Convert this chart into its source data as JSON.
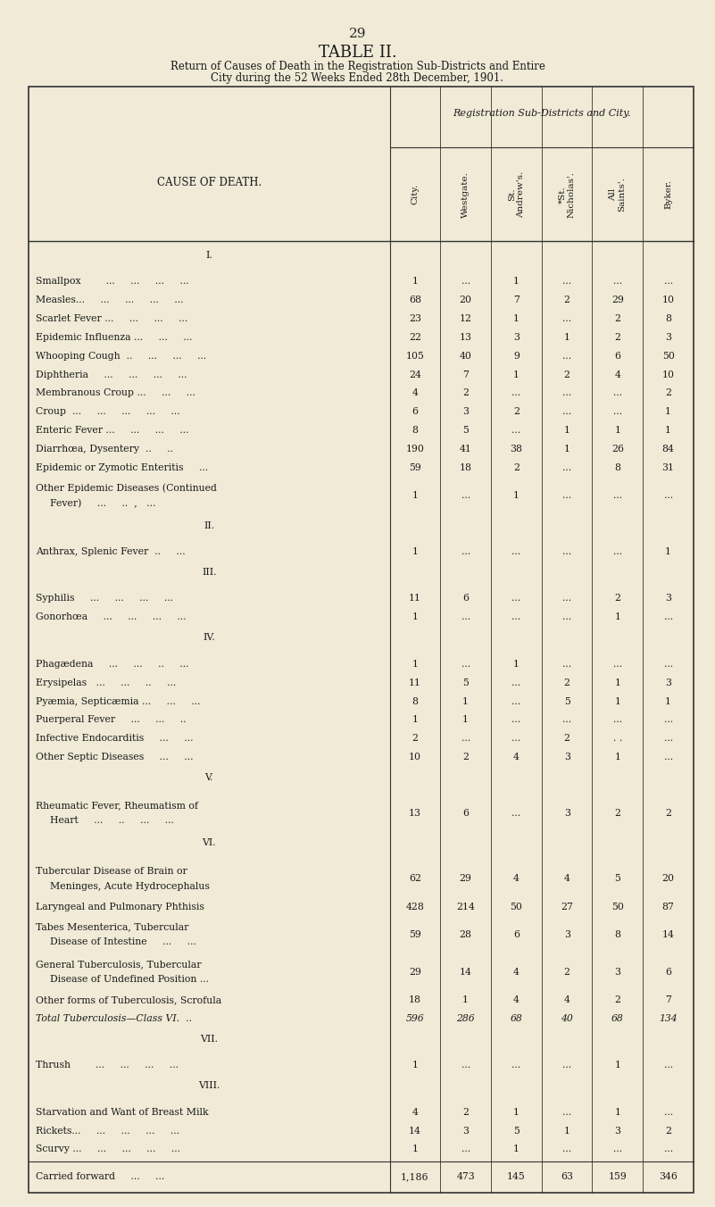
{
  "page_number": "29",
  "title": "TABLE II.",
  "subtitle_line1": "Return of Causes of Death in the Registration Sub-Districts and Entire",
  "subtitle_line2": "City during the 52 Weeks Ended 28th December, 1901.",
  "header_group": "Registration Sub-Districts and City.",
  "col_header_label": "CAUSE OF DEATH.",
  "columns": [
    "City.",
    "Westgate.",
    "St.\nAndrew's.",
    "*St.\nNicholas'.",
    "All\nSaints'.",
    "Byker."
  ],
  "bg_color": "#f0ead6",
  "sections": [
    {
      "section_label": "I.",
      "rows": [
        {
          "cause": "Smallpox        ...     ...     ...     ...",
          "values": [
            "1",
            "...",
            "1",
            "...",
            "...",
            "..."
          ]
        },
        {
          "cause": "Measles...     ...     ...     ...     ...",
          "values": [
            "68",
            "20",
            "7",
            "2",
            "29",
            "10"
          ]
        },
        {
          "cause": "Scarlet Fever ...     ...     ...     ...",
          "values": [
            "23",
            "12",
            "1",
            "...",
            "2",
            "8"
          ]
        },
        {
          "cause": "Epidemic Influenza ...     ...     ...  ",
          "values": [
            "22",
            "13",
            "3",
            "1",
            "2",
            "3"
          ]
        },
        {
          "cause": "Whooping Cough  ..     ...     ...     ...",
          "values": [
            "105",
            "40",
            "9",
            "...",
            "6",
            "50"
          ]
        },
        {
          "cause": "Diphtheria     ...     ...     ...     ...",
          "values": [
            "24",
            "7",
            "1",
            "2",
            "4",
            "10"
          ]
        },
        {
          "cause": "Membranous Croup ...     ...     ...   ",
          "values": [
            "4",
            "2",
            "...",
            "...",
            "...",
            "2"
          ]
        },
        {
          "cause": "Croup  ...     ...     ...     ...     ...",
          "values": [
            "6",
            "3",
            "2",
            "...",
            "...",
            "1"
          ]
        },
        {
          "cause": "Enteric Fever ...     ...     ...     ...",
          "values": [
            "8",
            "5",
            "...",
            "1",
            "1",
            "1"
          ]
        },
        {
          "cause": "Diarrhœa, Dysentery  ..     ..        ",
          "values": [
            "190",
            "41",
            "38",
            "1",
            "26",
            "84"
          ]
        },
        {
          "cause": "Epidemic or Zymotic Enteritis     ...  ",
          "values": [
            "59",
            "18",
            "2",
            "...",
            "8",
            "31"
          ]
        },
        {
          "cause": "Other Epidemic Diseases (Continued\n    Fever)     ...     ..  ,   ...",
          "values": [
            "1",
            "...",
            "1",
            "...",
            "...",
            "..."
          ]
        }
      ]
    },
    {
      "section_label": "II.",
      "rows": [
        {
          "cause": "Anthrax, Splenic Fever  ..     ...     ",
          "values": [
            "1",
            "...",
            "...",
            "...",
            "...",
            "1"
          ]
        }
      ]
    },
    {
      "section_label": "III.",
      "rows": [
        {
          "cause": "Syphilis     ...     ...     ...     ...",
          "values": [
            "11",
            "6",
            "...",
            "...",
            "2",
            "3"
          ]
        },
        {
          "cause": "Gonorhœa     ...     ...     ...     ...",
          "values": [
            "1",
            "...",
            "...",
            "...",
            "1",
            "..."
          ]
        }
      ]
    },
    {
      "section_label": "IV.",
      "rows": [
        {
          "cause": "Phagædena     ...     ...     ..     ...",
          "values": [
            "1",
            "...",
            "1",
            "...",
            "...",
            "..."
          ]
        },
        {
          "cause": "Erysipelas   ...     ...     ..     ...",
          "values": [
            "11",
            "5",
            "...",
            "2",
            "1",
            "3"
          ]
        },
        {
          "cause": "Pyæmia, Septicæmia ...     ...     ...",
          "values": [
            "8",
            "1",
            "...",
            "5",
            "1",
            "1"
          ]
        },
        {
          "cause": "Puerperal Fever     ...     ...     ..",
          "values": [
            "1",
            "1",
            "...",
            "...",
            "...",
            "..."
          ]
        },
        {
          "cause": "Infective Endocarditis     ...     ...",
          "values": [
            "2",
            "...",
            "...",
            "2",
            ". .",
            "..."
          ]
        },
        {
          "cause": "Other Septic Diseases     ...     ...",
          "values": [
            "10",
            "2",
            "4",
            "3",
            "1",
            "..."
          ]
        }
      ]
    },
    {
      "section_label": "V.",
      "rows": [
        {
          "cause": "Rheumatic Fever, Rheumatism of\n    Heart     ...     ..     ...     ...",
          "values": [
            "13",
            "6",
            "...",
            "3",
            "2",
            "2"
          ]
        }
      ]
    },
    {
      "section_label": "VI.",
      "rows": [
        {
          "cause": "Tubercular Disease of Brain or\n    Meninges, Acute Hydrocephalus",
          "values": [
            "62",
            "29",
            "4",
            "4",
            "5",
            "20"
          ]
        },
        {
          "cause": "Laryngeal and Pulmonary Phthisis",
          "values": [
            "428",
            "214",
            "50",
            "27",
            "50",
            "87"
          ]
        },
        {
          "cause": "Tabes Mesenterica, Tubercular\n    Disease of Intestine     ...     ...",
          "values": [
            "59",
            "28",
            "6",
            "3",
            "8",
            "14"
          ]
        },
        {
          "cause": "General Tuberculosis, Tubercular\n    Disease of Undefined Position ...",
          "values": [
            "29",
            "14",
            "4",
            "2",
            "3",
            "6"
          ]
        },
        {
          "cause": "Other forms of Tuberculosis, Scrofula",
          "values": [
            "18",
            "1",
            "4",
            "4",
            "2",
            "7"
          ]
        },
        {
          "cause": "Total Tuberculosis—Class VI.  ..",
          "values": [
            "596",
            "286",
            "68",
            "40",
            "68",
            "134"
          ],
          "italic": true
        }
      ]
    },
    {
      "section_label": "VII.",
      "rows": [
        {
          "cause": "Thrush        ...     ...     ...     ...",
          "values": [
            "1",
            "...",
            "...",
            "...",
            "1",
            "..."
          ]
        }
      ]
    },
    {
      "section_label": "VIII.",
      "rows": [
        {
          "cause": "Starvation and Want of Breast Milk",
          "values": [
            "4",
            "2",
            "1",
            "...",
            "1",
            "..."
          ]
        },
        {
          "cause": "Rickets...     ...     ...     ...     ...",
          "values": [
            "14",
            "3",
            "5",
            "1",
            "3",
            "2"
          ]
        },
        {
          "cause": "Scurvy ...     ...     ...     ...     ...",
          "values": [
            "1",
            "...",
            "1",
            "...",
            "...",
            "..."
          ]
        }
      ]
    }
  ],
  "footer_row": {
    "cause": "Carried forward     ...     ...  ",
    "values": [
      "1,186",
      "473",
      "145",
      "63",
      "159",
      "346"
    ]
  }
}
